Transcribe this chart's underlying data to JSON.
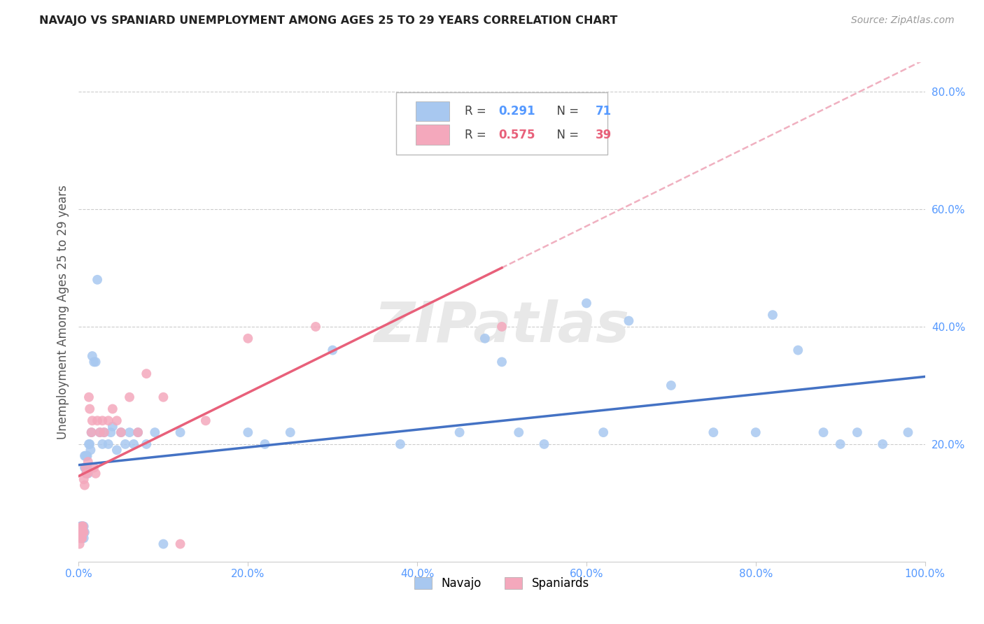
{
  "title": "NAVAJO VS SPANIARD UNEMPLOYMENT AMONG AGES 25 TO 29 YEARS CORRELATION CHART",
  "source": "Source: ZipAtlas.com",
  "ylabel": "Unemployment Among Ages 25 to 29 years",
  "xlim": [
    0.0,
    1.0
  ],
  "ylim": [
    0.0,
    0.85
  ],
  "xticks": [
    0.0,
    0.2,
    0.4,
    0.6,
    0.8,
    1.0
  ],
  "xtick_labels": [
    "0.0%",
    "20.0%",
    "40.0%",
    "60.0%",
    "80.0%",
    "100.0%"
  ],
  "ytick_labels": [
    "20.0%",
    "40.0%",
    "60.0%",
    "80.0%"
  ],
  "ytick_positions": [
    0.2,
    0.4,
    0.6,
    0.8
  ],
  "navajo_R": "0.291",
  "navajo_N": "71",
  "spaniard_R": "0.575",
  "spaniard_N": "39",
  "navajo_color": "#A8C8F0",
  "spaniard_color": "#F4A8BC",
  "navajo_line_color": "#4472C4",
  "spaniard_line_color": "#E8607A",
  "spaniard_dashed_color": "#F0B0C0",
  "background_color": "#FFFFFF",
  "navajo_x": [
    0.001,
    0.002,
    0.002,
    0.003,
    0.003,
    0.003,
    0.004,
    0.004,
    0.004,
    0.005,
    0.005,
    0.005,
    0.006,
    0.006,
    0.007,
    0.007,
    0.007,
    0.008,
    0.008,
    0.009,
    0.009,
    0.01,
    0.01,
    0.011,
    0.012,
    0.013,
    0.014,
    0.015,
    0.016,
    0.018,
    0.02,
    0.022,
    0.025,
    0.028,
    0.03,
    0.035,
    0.038,
    0.04,
    0.045,
    0.05,
    0.055,
    0.06,
    0.065,
    0.07,
    0.08,
    0.09,
    0.1,
    0.12,
    0.2,
    0.22,
    0.25,
    0.3,
    0.38,
    0.45,
    0.48,
    0.5,
    0.52,
    0.55,
    0.6,
    0.62,
    0.65,
    0.7,
    0.75,
    0.8,
    0.82,
    0.85,
    0.88,
    0.9,
    0.92,
    0.95,
    0.98
  ],
  "navajo_y": [
    0.05,
    0.06,
    0.05,
    0.05,
    0.04,
    0.06,
    0.05,
    0.06,
    0.04,
    0.05,
    0.06,
    0.05,
    0.04,
    0.06,
    0.05,
    0.16,
    0.18,
    0.16,
    0.18,
    0.15,
    0.18,
    0.16,
    0.18,
    0.15,
    0.2,
    0.2,
    0.19,
    0.22,
    0.35,
    0.34,
    0.34,
    0.48,
    0.22,
    0.2,
    0.22,
    0.2,
    0.22,
    0.23,
    0.19,
    0.22,
    0.2,
    0.22,
    0.2,
    0.22,
    0.2,
    0.22,
    0.03,
    0.22,
    0.22,
    0.2,
    0.22,
    0.36,
    0.2,
    0.22,
    0.38,
    0.34,
    0.22,
    0.2,
    0.44,
    0.22,
    0.41,
    0.3,
    0.22,
    0.22,
    0.42,
    0.36,
    0.22,
    0.2,
    0.22,
    0.2,
    0.22
  ],
  "spaniard_x": [
    0.001,
    0.002,
    0.002,
    0.003,
    0.003,
    0.004,
    0.004,
    0.005,
    0.005,
    0.006,
    0.006,
    0.007,
    0.008,
    0.009,
    0.01,
    0.011,
    0.012,
    0.013,
    0.015,
    0.016,
    0.018,
    0.02,
    0.022,
    0.025,
    0.028,
    0.03,
    0.035,
    0.04,
    0.045,
    0.05,
    0.06,
    0.07,
    0.08,
    0.1,
    0.12,
    0.15,
    0.2,
    0.28,
    0.5
  ],
  "spaniard_y": [
    0.03,
    0.04,
    0.05,
    0.04,
    0.05,
    0.04,
    0.06,
    0.05,
    0.06,
    0.05,
    0.14,
    0.13,
    0.16,
    0.15,
    0.15,
    0.17,
    0.28,
    0.26,
    0.22,
    0.24,
    0.16,
    0.15,
    0.24,
    0.22,
    0.24,
    0.22,
    0.24,
    0.26,
    0.24,
    0.22,
    0.28,
    0.22,
    0.32,
    0.28,
    0.03,
    0.24,
    0.38,
    0.4,
    0.4
  ]
}
